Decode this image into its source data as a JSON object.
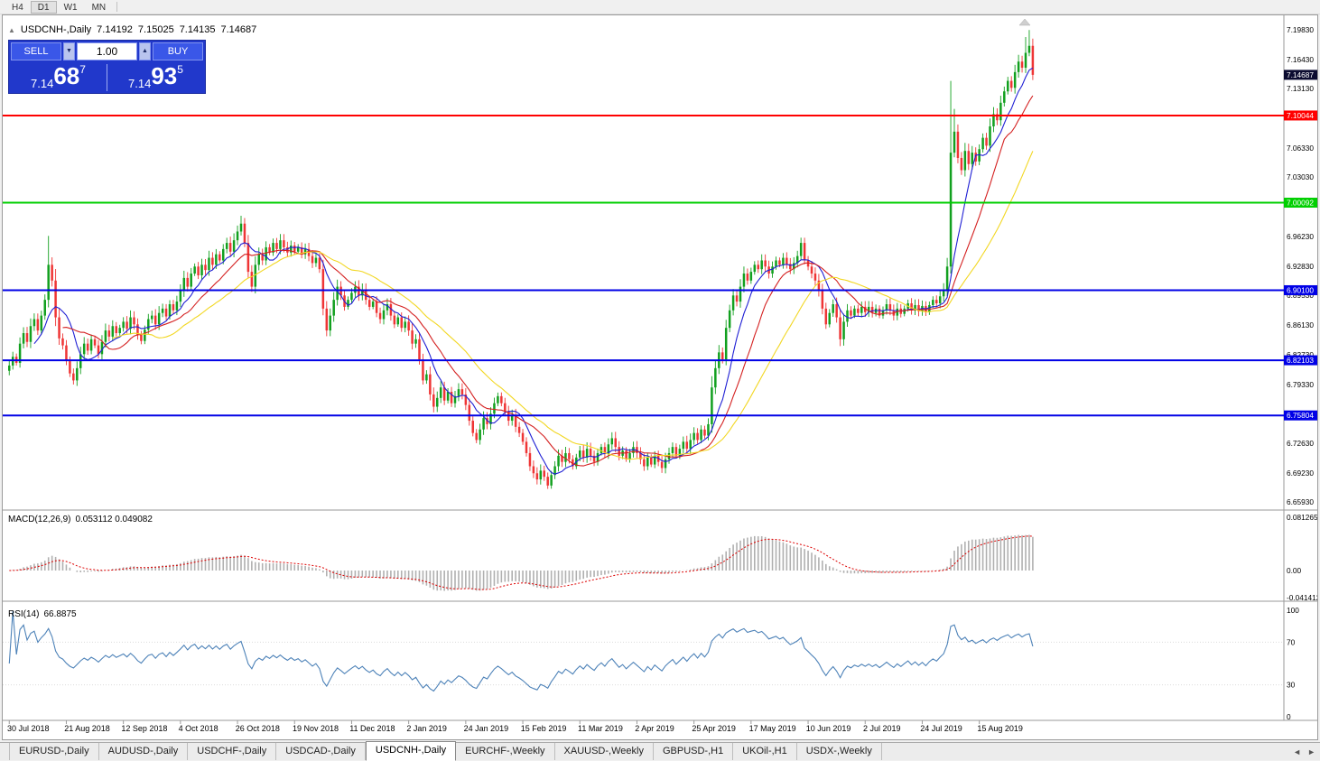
{
  "toolbar": {
    "periods": [
      "H4",
      "D1",
      "W1",
      "MN"
    ],
    "active": "D1"
  },
  "chart_header": {
    "collapse_icon": "▲",
    "symbol": "USDCNH-,Daily",
    "open": "7.14192",
    "high": "7.15025",
    "low": "7.14135",
    "close": "7.14687"
  },
  "trade_panel": {
    "sell_label": "SELL",
    "buy_label": "BUY",
    "volume": "1.00",
    "icons": {
      "down": "▼",
      "up": "▲"
    },
    "sell_price": {
      "base": "7.14",
      "pips": "68",
      "pipette": "7"
    },
    "buy_price": {
      "base": "7.14",
      "pips": "93",
      "pipette": "5"
    }
  },
  "price_axis": {
    "labels": [
      "7.19830",
      "7.16430",
      "7.13130",
      "7.09830",
      "7.06330",
      "7.03030",
      "6.99830",
      "6.96230",
      "6.92830",
      "6.89530",
      "6.86130",
      "6.82730",
      "6.79330",
      "6.75930",
      "6.72630",
      "6.69230",
      "6.65930"
    ],
    "current": {
      "value": 7.14687,
      "label": "7.14687",
      "bg": "#0c0c30"
    }
  },
  "levels": [
    {
      "value": 7.10044,
      "label": "7.10044",
      "color": "#ff0000",
      "width": 2
    },
    {
      "value": 7.00092,
      "label": "7.00092",
      "color": "#00cf00",
      "width": 2
    },
    {
      "value": 6.901,
      "label": "6.90100",
      "color": "#0000e6",
      "width": 2
    },
    {
      "value": 6.82103,
      "label": "6.82103",
      "color": "#0000e6",
      "width": 2
    },
    {
      "value": 6.75804,
      "label": "6.75804",
      "color": "#0000e6",
      "width": 2
    }
  ],
  "indicators": {
    "macd": {
      "name": "MACD(12,26,9)",
      "values": "0.053112 0.049082",
      "params": {
        "fast": 12,
        "slow": 26,
        "signal": 9
      },
      "axis": [
        {
          "label": "0.081265",
          "value": 0.081265
        },
        {
          "label": "0.00",
          "value": 0
        },
        {
          "label": "-0.041412",
          "value": -0.041412
        }
      ],
      "range": [
        -0.041412,
        0.081265
      ]
    },
    "rsi": {
      "name": "RSI(14)",
      "value": "66.8875",
      "period": 14,
      "axis": [
        {
          "label": "100",
          "value": 100
        },
        {
          "label": "70",
          "value": 70
        },
        {
          "label": "30",
          "value": 30
        },
        {
          "label": "0",
          "value": 0
        }
      ],
      "levels": [
        70,
        30
      ]
    }
  },
  "x_axis": {
    "bars_per_label": 16,
    "dates": [
      "30 Jul 2018",
      "21 Aug 2018",
      "12 Sep 2018",
      "4 Oct 2018",
      "26 Oct 2018",
      "19 Nov 2018",
      "11 Dec 2018",
      "2 Jan 2019",
      "24 Jan 2019",
      "15 Feb 2019",
      "11 Mar 2019",
      "2 Apr 2019",
      "25 Apr 2019",
      "17 May 2019",
      "10 Jun 2019",
      "2 Jul 2019",
      "24 Jul 2019",
      "15 Aug 2019"
    ]
  },
  "tabs": {
    "items": [
      {
        "label": "EURUSD-,Daily"
      },
      {
        "label": "AUDUSD-,Daily"
      },
      {
        "label": "USDCHF-,Daily"
      },
      {
        "label": "USDCAD-,Daily"
      },
      {
        "label": "USDCNH-,Daily"
      },
      {
        "label": "EURCHF-,Weekly"
      },
      {
        "label": "XAUUSD-,Weekly"
      },
      {
        "label": "GBPUSD-,H1"
      },
      {
        "label": "UKOil-,H1"
      },
      {
        "label": "USDX-,Weekly"
      }
    ],
    "active": "USDCNH-,Daily",
    "scroll_left_icon": "◄",
    "scroll_right_icon": "►"
  },
  "colors": {
    "up": "#12a01f",
    "down": "#ef3535",
    "macd_hist": "#b0b0b0",
    "macd_signal": "#dd0000",
    "rsi_line": "#4d82b8",
    "axis_text": "#000000",
    "separator": "#9a9a9a",
    "current_badge_bg": "#0c0c30"
  },
  "chart_data": {
    "type": "candlestick",
    "symbol": "USDCNH-,Daily",
    "timeframe": "Daily",
    "price_range": [
      6.6593,
      7.1983
    ],
    "ohlc_current": {
      "open": 7.14192,
      "high": 7.15025,
      "low": 7.14135,
      "close": 7.14687
    },
    "moving_averages": [
      {
        "period": 8,
        "color": "#1f1fd4"
      },
      {
        "period": 16,
        "color": "#d42020"
      },
      {
        "period": 30,
        "color": "#f2d722"
      }
    ],
    "closes": [
      6.815,
      6.825,
      6.818,
      6.84,
      6.852,
      6.842,
      6.86,
      6.868,
      6.855,
      6.872,
      6.89,
      6.93,
      6.912,
      6.87,
      6.846,
      6.838,
      6.82,
      6.806,
      6.798,
      6.812,
      6.828,
      6.84,
      6.832,
      6.845,
      6.838,
      6.828,
      6.842,
      6.855,
      6.848,
      6.86,
      6.852,
      6.858,
      6.865,
      6.857,
      6.87,
      6.862,
      6.85,
      6.843,
      6.856,
      6.868,
      6.872,
      6.862,
      6.875,
      6.88,
      6.871,
      6.885,
      6.878,
      6.888,
      6.9,
      6.915,
      6.905,
      6.92,
      6.928,
      6.918,
      6.93,
      6.924,
      6.938,
      6.93,
      6.942,
      6.935,
      6.948,
      6.955,
      6.945,
      6.958,
      6.968,
      6.977,
      6.955,
      6.922,
      6.905,
      6.93,
      6.942,
      6.935,
      6.95,
      6.944,
      6.955,
      6.948,
      6.958,
      6.95,
      6.944,
      6.952,
      6.945,
      6.95,
      6.942,
      6.948,
      6.94,
      6.932,
      6.938,
      6.925,
      6.88,
      6.855,
      6.872,
      6.89,
      6.905,
      6.895,
      6.882,
      6.89,
      6.898,
      6.905,
      6.895,
      6.902,
      6.89,
      6.882,
      6.888,
      6.875,
      6.868,
      6.878,
      6.885,
      6.872,
      6.862,
      6.87,
      6.858,
      6.865,
      6.855,
      6.84,
      6.845,
      6.822,
      6.798,
      6.805,
      6.782,
      6.768,
      6.778,
      6.79,
      6.775,
      6.785,
      6.772,
      6.78,
      6.788,
      6.782,
      6.77,
      6.752,
      6.738,
      6.73,
      6.742,
      6.755,
      6.748,
      6.76,
      6.772,
      6.78,
      6.772,
      6.762,
      6.752,
      6.758,
      6.745,
      6.738,
      6.728,
      6.715,
      6.7,
      6.692,
      6.685,
      6.695,
      6.688,
      6.678,
      6.69,
      6.7,
      6.712,
      6.705,
      6.715,
      6.708,
      6.7,
      6.71,
      6.718,
      6.71,
      6.72,
      6.712,
      6.705,
      6.715,
      6.722,
      6.714,
      6.725,
      6.732,
      6.722,
      6.712,
      6.718,
      6.708,
      6.715,
      6.722,
      6.715,
      6.708,
      6.7,
      6.71,
      6.702,
      6.712,
      6.705,
      6.698,
      6.708,
      6.715,
      6.722,
      6.712,
      6.72,
      6.728,
      6.72,
      6.73,
      6.738,
      6.73,
      6.742,
      6.735,
      6.748,
      6.79,
      6.812,
      6.83,
      6.822,
      6.858,
      6.878,
      6.895,
      6.888,
      6.905,
      6.92,
      6.912,
      6.922,
      6.93,
      6.925,
      6.935,
      6.928,
      6.92,
      6.928,
      6.935,
      6.93,
      6.938,
      6.931,
      6.925,
      6.932,
      6.94,
      6.955,
      6.935,
      6.928,
      6.92,
      6.912,
      6.9,
      6.88,
      6.862,
      6.875,
      6.885,
      6.87,
      6.845,
      6.865,
      6.878,
      6.872,
      6.88,
      6.875,
      6.882,
      6.876,
      6.882,
      6.875,
      6.88,
      6.872,
      6.878,
      6.885,
      6.878,
      6.872,
      6.88,
      6.874,
      6.88,
      6.886,
      6.878,
      6.884,
      6.877,
      6.883,
      6.876,
      6.884,
      6.89,
      6.886,
      6.894,
      6.902,
      6.928,
      7.058,
      7.082,
      7.052,
      7.038,
      7.06,
      7.045,
      7.058,
      7.048,
      7.062,
      7.075,
      7.066,
      7.088,
      7.102,
      7.095,
      7.115,
      7.128,
      7.14,
      7.132,
      7.15,
      7.162,
      7.155,
      7.172,
      7.18,
      7.14687
    ],
    "overrides": {
      "11": {
        "h": 6.963
      },
      "65": {
        "h": 6.986
      },
      "264": {
        "h": 7.14,
        "l": 6.92
      },
      "265": {
        "h": 7.108
      },
      "285": {
        "h": 7.19
      },
      "286": {
        "h": 7.198
      }
    }
  }
}
